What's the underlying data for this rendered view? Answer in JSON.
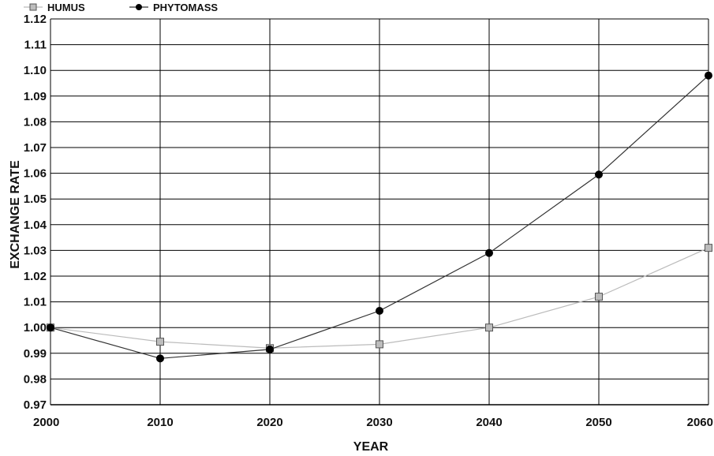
{
  "chart_data": {
    "type": "line",
    "title": "",
    "xlabel": "YEAR",
    "ylabel": "EXCHANGE RATE",
    "x": [
      2000,
      2010,
      2020,
      2030,
      2040,
      2050,
      2060
    ],
    "xlim": [
      2000,
      2060
    ],
    "ylim": [
      0.97,
      1.12
    ],
    "xticks": [
      "2000",
      "2010",
      "2020",
      "2030",
      "2040",
      "2050",
      "2060"
    ],
    "yticks": [
      "0.97",
      "0.98",
      "0.99",
      "1.00",
      "1.01",
      "1.02",
      "1.03",
      "1.04",
      "1.05",
      "1.06",
      "1.07",
      "1.08",
      "1.09",
      "1.10",
      "1.11",
      "1.12"
    ],
    "grid": true,
    "legend_position": "top-left",
    "series": [
      {
        "name": "HUMUS",
        "color": "#bbbbbb",
        "marker": "square",
        "values": [
          1.0,
          0.9945,
          0.992,
          0.9935,
          1.0,
          1.012,
          1.031
        ]
      },
      {
        "name": "PHYTOMASS",
        "color": "#333333",
        "marker": "circle",
        "values": [
          1.0,
          0.988,
          0.9915,
          1.0065,
          1.029,
          1.0595,
          1.098
        ]
      }
    ]
  }
}
